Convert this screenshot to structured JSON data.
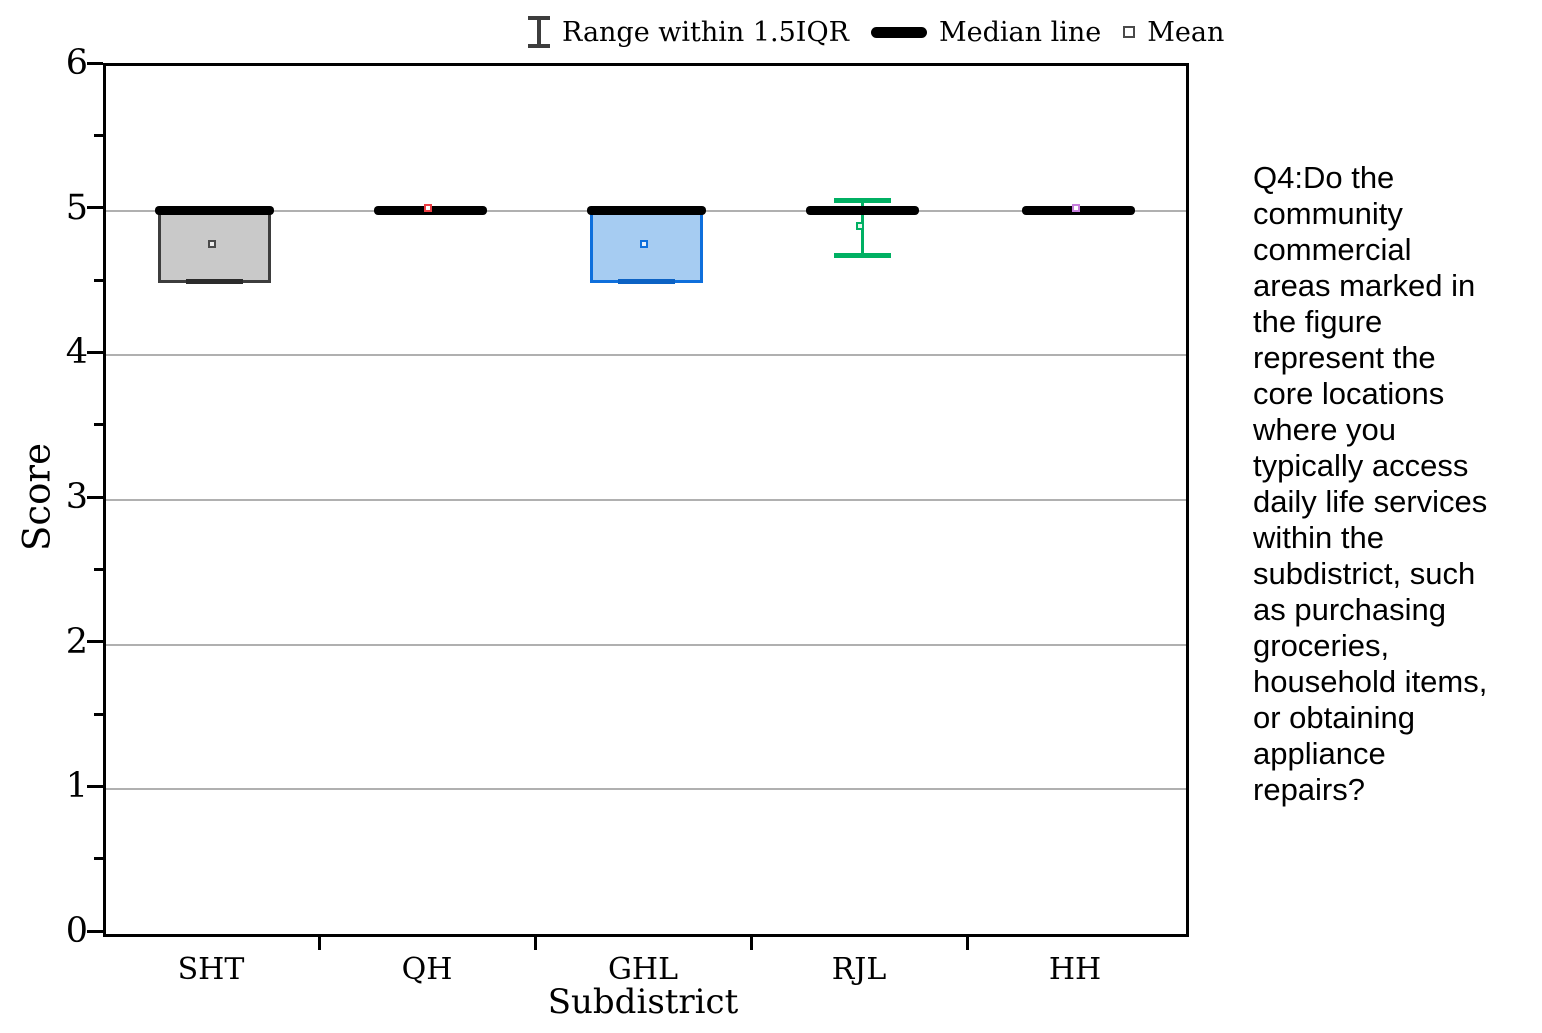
{
  "legend": {
    "items": [
      {
        "icon": "error-bar-icon",
        "label": "Range within 1.5IQR"
      },
      {
        "icon": "median-line-icon",
        "label": "Median line"
      },
      {
        "icon": "mean-marker-icon",
        "label": "Mean"
      }
    ]
  },
  "question": {
    "text": "Q4:Do the\ncommunity\ncommercial\nareas marked in\nthe figure\nrepresent the\ncore locations\nwhere you\ntypically access\ndaily life services\nwithin the\nsubdistrict, such\nas purchasing\ngroceries,\nhousehold items,\nor obtaining\nappliance\nrepairs?"
  },
  "chart_data": {
    "type": "box",
    "title": "",
    "xlabel": "Subdistrict",
    "ylabel": "Score",
    "ylim": [
      0,
      6
    ],
    "y_major_ticks": [
      0,
      1,
      2,
      3,
      4,
      5,
      6
    ],
    "y_tick_labels": [
      "0",
      "1",
      "2",
      "3",
      "4",
      "5",
      "6"
    ],
    "y_minor_ticks": [
      0.5,
      1.5,
      2.5,
      3.5,
      4.5,
      5.5
    ],
    "gridlines": [
      1,
      2,
      3,
      4,
      5
    ],
    "grid_on": true,
    "legend_position": "top",
    "categories": [
      "SHT",
      "QH",
      "GHL",
      "RJL",
      "HH"
    ],
    "median_color": "#000000",
    "gridline_color": "#b0b0b0",
    "series": [
      {
        "label": "SHT",
        "q1": 4.5,
        "q3": 5.0,
        "median": 5.0,
        "mean": 4.75,
        "whisker_low": 4.51,
        "whisker_high": null,
        "box_fill": "#c9c9c9",
        "stroke": "#3d3d3d",
        "cap_color": "#2b2b2b",
        "mean_stroke": "#4a4a4a",
        "mean_fill": "#ececec"
      },
      {
        "label": "QH",
        "q1": null,
        "q3": null,
        "median": 5.0,
        "mean": 5.0,
        "whisker_low": null,
        "whisker_high": null,
        "box_fill": null,
        "stroke": "#000000",
        "cap_color": null,
        "mean_stroke": "#ee3e44",
        "mean_fill": "#ffffff"
      },
      {
        "label": "GHL",
        "q1": 4.5,
        "q3": 5.0,
        "median": 5.0,
        "mean": 4.75,
        "whisker_low": 4.51,
        "whisker_high": null,
        "box_fill": "#a6ccf2",
        "stroke": "#0e6fdc",
        "cap_color": "#0c62c4",
        "mean_stroke": "#0e6fdc",
        "mean_fill": "#e8f1fb"
      },
      {
        "label": "RJL",
        "q1": null,
        "q3": null,
        "median": 5.0,
        "mean": 4.88,
        "whisker_low": 4.69,
        "whisker_high": 5.07,
        "box_fill": null,
        "stroke": "#00b063",
        "cap_color": "#00b063",
        "mean_stroke": "#00b063",
        "mean_fill": "#e6f7ee"
      },
      {
        "label": "HH",
        "q1": null,
        "q3": null,
        "median": 5.0,
        "mean": 5.0,
        "whisker_low": null,
        "whisker_high": null,
        "box_fill": null,
        "stroke": "#000000",
        "cap_color": null,
        "mean_stroke": "#c77fdd",
        "mean_fill": "#ffffff"
      }
    ]
  }
}
